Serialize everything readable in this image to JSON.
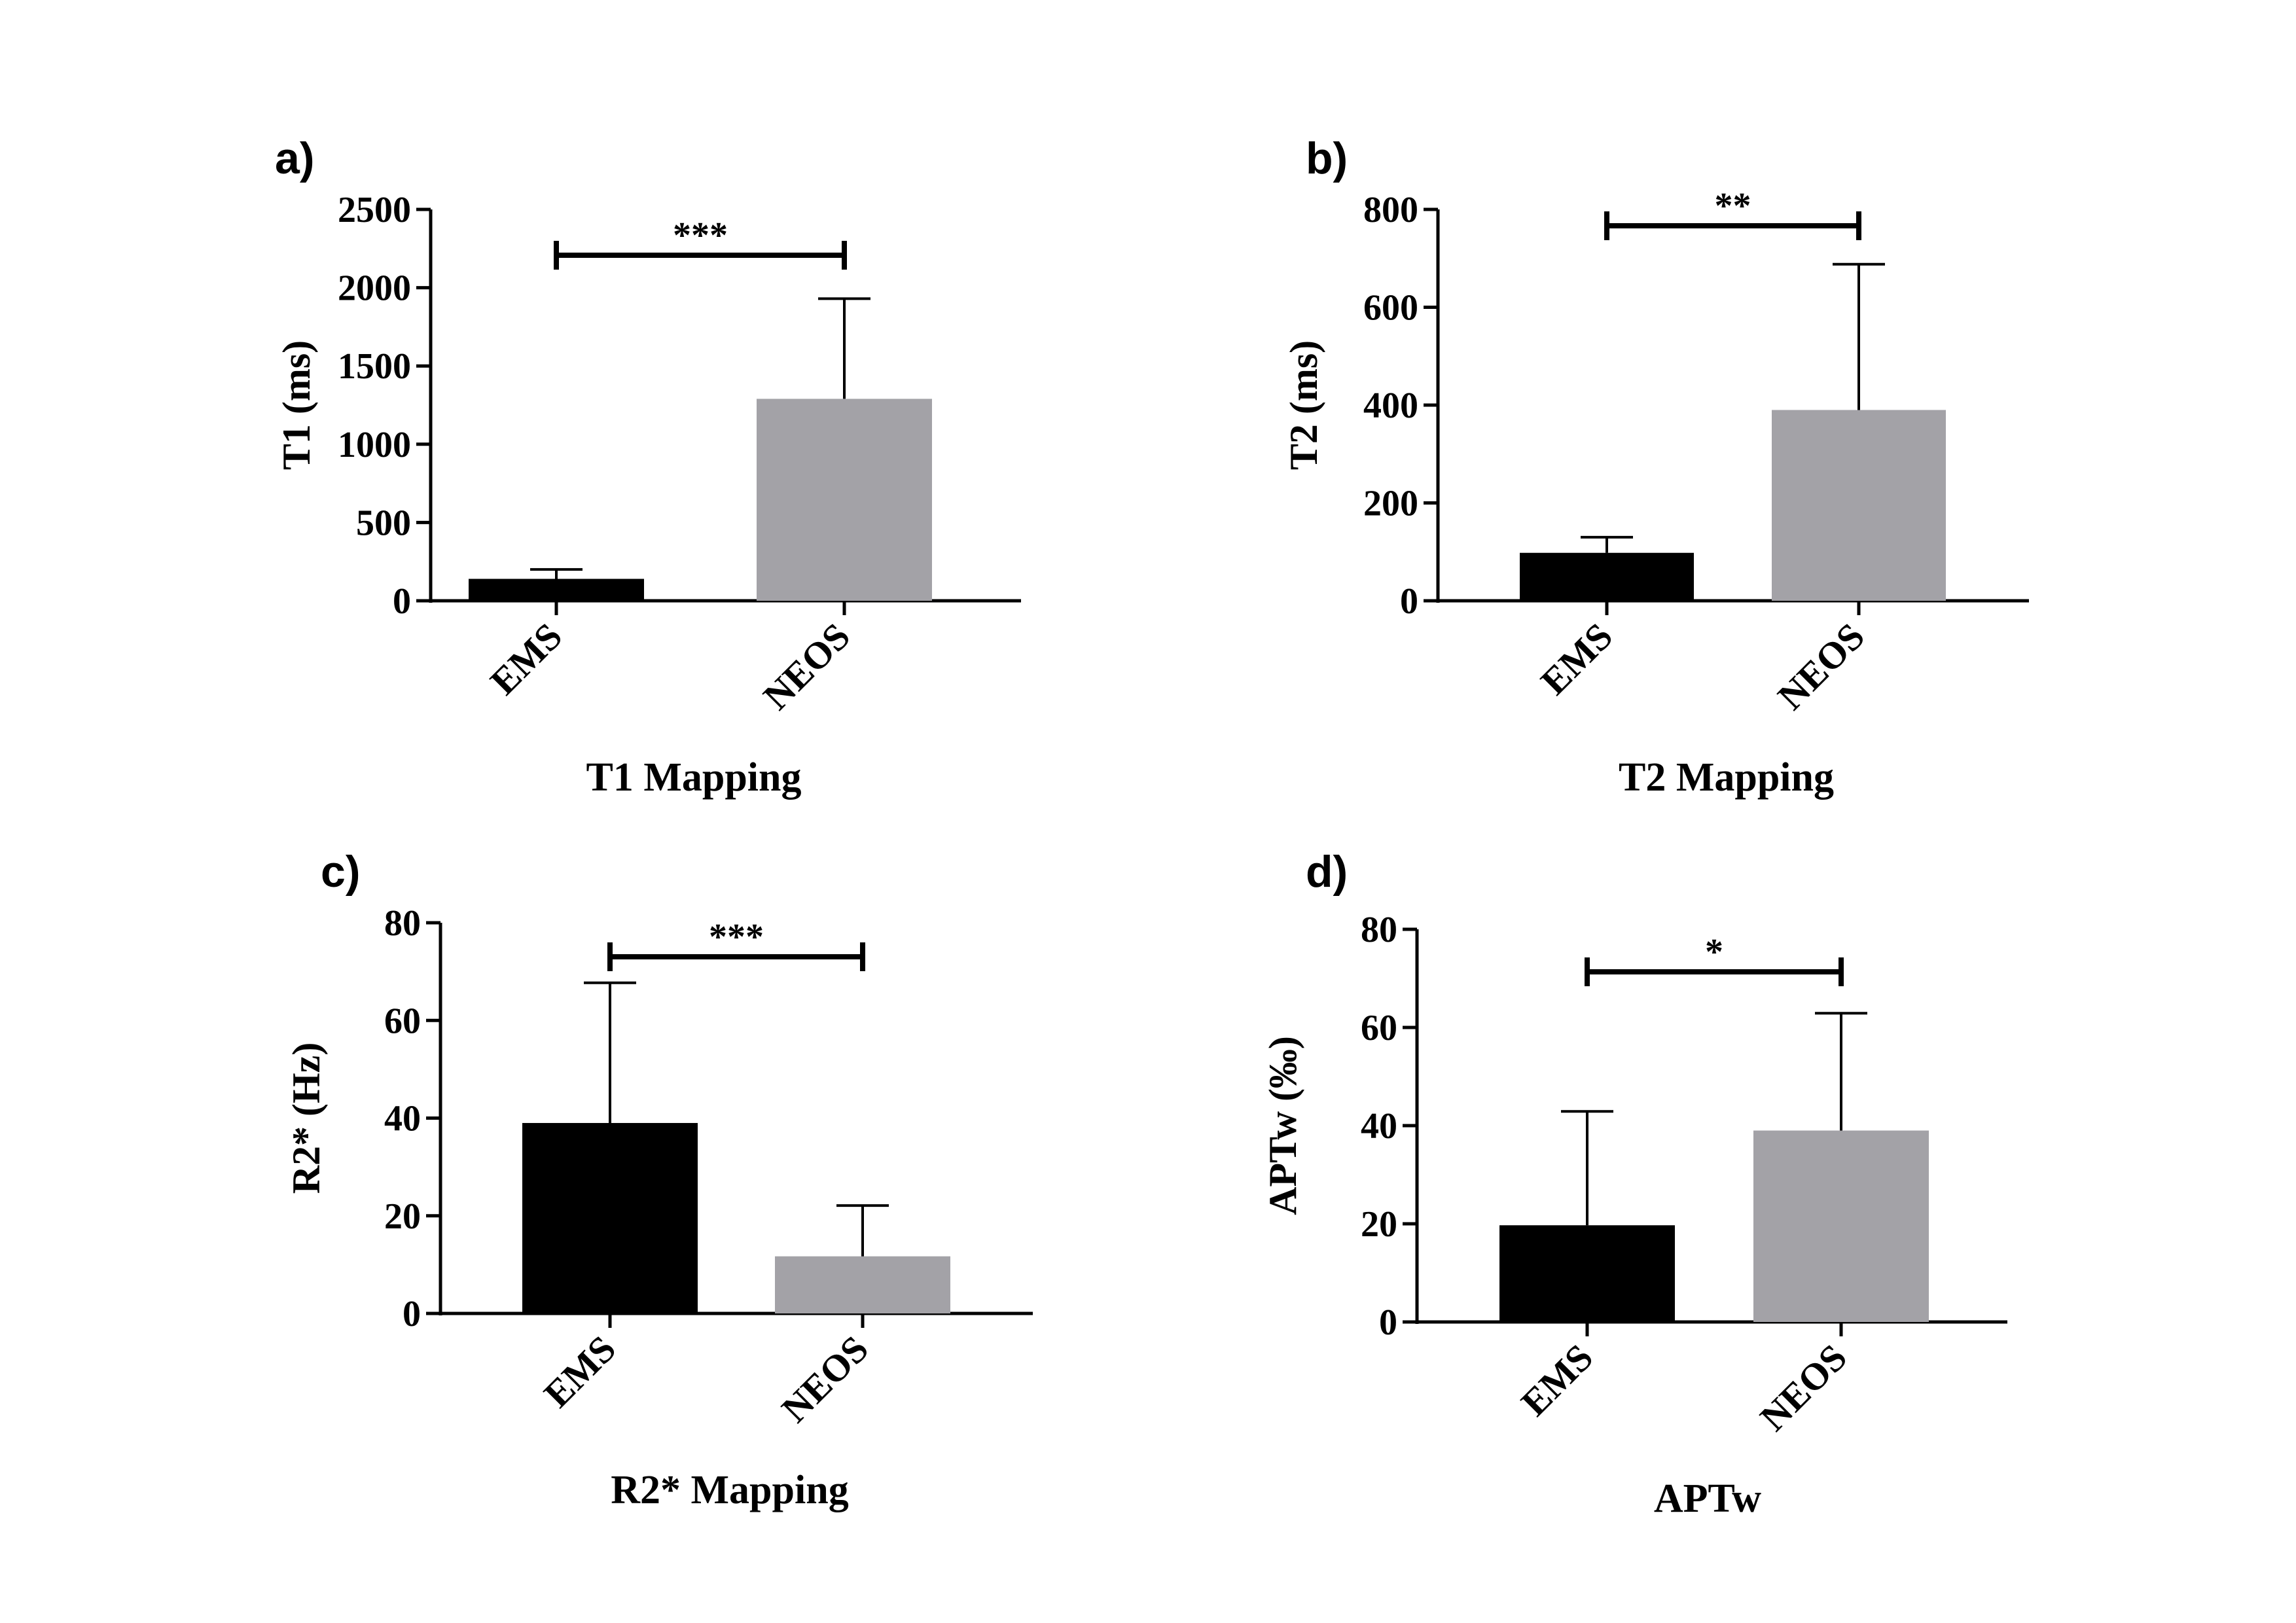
{
  "chart_data": [
    {
      "panel": "a)",
      "type": "bar",
      "title": "T1 Mapping",
      "xlabel": "T1 Mapping",
      "ylabel": "T1 (ms)",
      "categories": [
        "EMS",
        "NEOS"
      ],
      "values": [
        140,
        1290
      ],
      "errors": [
        60,
        640
      ],
      "colors": [
        "#000000",
        "#a3a2a7"
      ],
      "ylim": [
        0,
        2500
      ],
      "yticks": [
        0,
        500,
        1000,
        1500,
        2000,
        2500
      ],
      "significance": "***"
    },
    {
      "panel": "b)",
      "type": "bar",
      "title": "T2 Mapping",
      "xlabel": "T2 Mapping",
      "ylabel": "T2 (ms)",
      "categories": [
        "EMS",
        "NEOS"
      ],
      "values": [
        98,
        390
      ],
      "errors": [
        32,
        298
      ],
      "colors": [
        "#000000",
        "#a3a2a7"
      ],
      "ylim": [
        0,
        800
      ],
      "yticks": [
        0,
        200,
        400,
        600,
        800
      ],
      "significance": "**"
    },
    {
      "panel": "c)",
      "type": "bar",
      "title": "R2* Mapping",
      "xlabel": "R2* Mapping",
      "ylabel": "R2* (Hz)",
      "categories": [
        "EMS",
        "NEOS"
      ],
      "values": [
        39,
        11.7
      ],
      "errors": [
        28.7,
        10.4
      ],
      "colors": [
        "#000000",
        "#a3a2a7"
      ],
      "ylim": [
        0,
        80
      ],
      "yticks": [
        0,
        20,
        40,
        60,
        80
      ],
      "significance": "***"
    },
    {
      "panel": "d)",
      "type": "bar",
      "title": "APTw",
      "xlabel": "APTw",
      "ylabel": "APTw (‰)",
      "categories": [
        "EMS",
        "NEOS"
      ],
      "values": [
        19.7,
        39
      ],
      "errors": [
        23.2,
        23.9
      ],
      "colors": [
        "#000000",
        "#a3a2a7"
      ],
      "ylim": [
        0,
        80
      ],
      "yticks": [
        0,
        20,
        40,
        60,
        80
      ],
      "significance": "*"
    }
  ]
}
